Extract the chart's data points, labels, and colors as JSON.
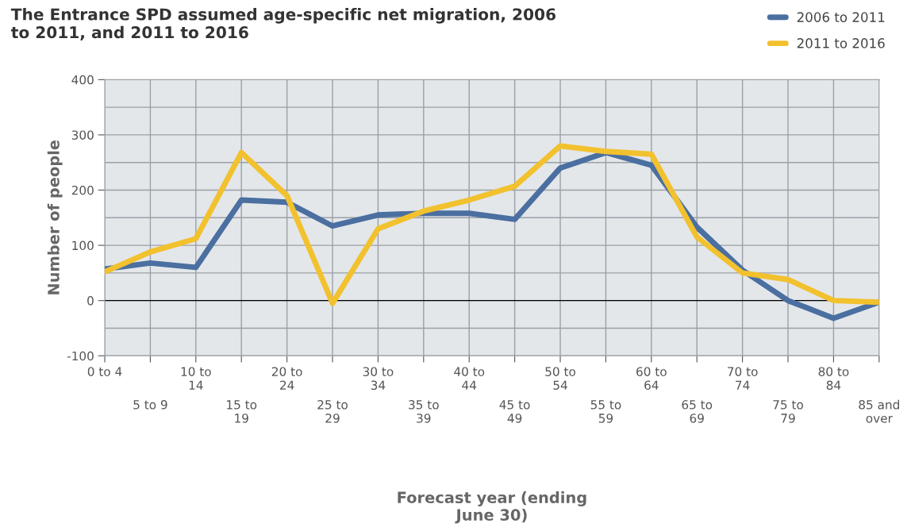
{
  "chart_data": {
    "type": "line",
    "title": "The Entrance SPD assumed age-specific net migration, 2006\nto 2011, and 2011 to 2016",
    "xlabel": "Forecast year (ending\nJune 30)",
    "ylabel": "Number of people",
    "categories": [
      "0 to 4",
      "5 to 9",
      "10 to\n14",
      "15 to\n19",
      "20 to\n24",
      "25 to\n29",
      "30 to\n34",
      "35 to\n39",
      "40 to\n44",
      "45 to\n49",
      "50 to\n54",
      "55 to\n59",
      "60 to\n64",
      "65 to\n69",
      "70 to\n74",
      "75 to\n79",
      "80 to\n84",
      "85 and\nover"
    ],
    "series": [
      {
        "name": "2006 to 2011",
        "color": "#4a6fa0",
        "values": [
          57,
          68,
          60,
          182,
          178,
          135,
          155,
          158,
          158,
          147,
          240,
          268,
          245,
          133,
          55,
          0,
          -32,
          -3
        ]
      },
      {
        "name": "2011 to 2016",
        "color": "#f2c12e",
        "values": [
          52,
          88,
          112,
          268,
          190,
          -5,
          130,
          162,
          182,
          207,
          280,
          270,
          265,
          115,
          50,
          38,
          0,
          -3
        ]
      }
    ],
    "ylim": [
      -100,
      400
    ],
    "yticks": [
      -100,
      0,
      100,
      200,
      300,
      400
    ],
    "grid": true,
    "legend": "top right",
    "ref_lines": [
      {
        "axis": "y",
        "value": 0,
        "color": "#000000"
      }
    ]
  }
}
